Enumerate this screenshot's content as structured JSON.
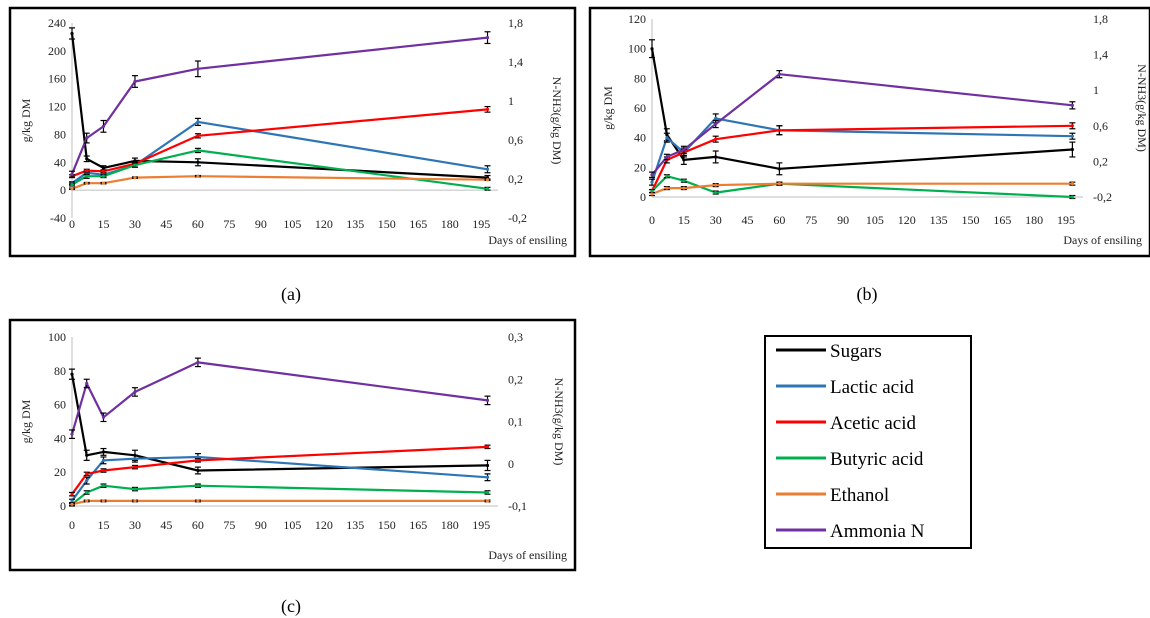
{
  "legend": [
    {
      "name": "Sugars",
      "color": "#000000"
    },
    {
      "name": "Lactic acid",
      "color": "#2e75b6"
    },
    {
      "name": "Acetic acid",
      "color": "#ff0000"
    },
    {
      "name": "Butyric acid",
      "color": "#00b050"
    },
    {
      "name": "Ethanol",
      "color": "#ed7d31"
    },
    {
      "name": "Ammonia N",
      "color": "#7030a0"
    }
  ],
  "chart_data": [
    {
      "type": "line",
      "label": "(a)",
      "xlabel": "Days of ensiling",
      "ylabel": "g/kg DM",
      "y2label": "N-NH3(g/kg DM)",
      "x_ticks": [
        "0",
        "15",
        "30",
        "45",
        "60",
        "75",
        "90",
        "105",
        "120",
        "135",
        "150",
        "165",
        "180",
        "195"
      ],
      "y_ticks": [
        "240",
        "200",
        "160",
        "120",
        "80",
        "40",
        "0",
        "-40"
      ],
      "y2_ticks": [
        "1,8",
        "1,4",
        "1",
        "0,6",
        "0,2",
        "-0,2"
      ],
      "ylim": [
        -40,
        240
      ],
      "y2lim": [
        -0.2,
        1.8
      ],
      "grid": false,
      "series": [
        {
          "name": "Sugars",
          "axis": "left",
          "x": [
            0,
            7,
            15,
            30,
            60,
            198
          ],
          "values": [
            225,
            45,
            32,
            42,
            40,
            18
          ],
          "err": [
            8,
            4,
            3,
            4,
            5,
            3
          ]
        },
        {
          "name": "Lactic acid",
          "axis": "left",
          "x": [
            0,
            7,
            15,
            30,
            60,
            198
          ],
          "values": [
            10,
            25,
            22,
            36,
            98,
            30
          ],
          "err": [
            2,
            3,
            3,
            3,
            5,
            5
          ]
        },
        {
          "name": "Acetic acid",
          "axis": "left",
          "x": [
            0,
            7,
            15,
            30,
            60,
            198
          ],
          "values": [
            20,
            28,
            27,
            38,
            78,
            116
          ],
          "err": [
            2,
            2,
            2,
            2,
            3,
            4
          ]
        },
        {
          "name": "Butyric acid",
          "axis": "left",
          "x": [
            0,
            7,
            15,
            30,
            60,
            198
          ],
          "values": [
            8,
            20,
            20,
            36,
            57,
            2
          ],
          "err": [
            2,
            3,
            2,
            3,
            3,
            2
          ]
        },
        {
          "name": "Ethanol",
          "axis": "left",
          "x": [
            0,
            7,
            15,
            30,
            60,
            198
          ],
          "values": [
            2,
            10,
            10,
            18,
            20,
            15
          ],
          "err": [
            1,
            1,
            1,
            1,
            1,
            1
          ]
        },
        {
          "name": "Ammonia N",
          "axis": "right",
          "x": [
            0,
            7,
            15,
            30,
            60,
            198
          ],
          "values": [
            0.25,
            0.62,
            0.74,
            1.2,
            1.33,
            1.65
          ],
          "err": [
            0.03,
            0.05,
            0.06,
            0.06,
            0.08,
            0.06
          ]
        }
      ]
    },
    {
      "type": "line",
      "label": "(b)",
      "xlabel": "Days of ensiling",
      "ylabel": "g/kg DM",
      "y2label": "N-NH3(g/kg DM)",
      "x_ticks": [
        "0",
        "15",
        "30",
        "45",
        "60",
        "75",
        "90",
        "105",
        "120",
        "135",
        "150",
        "165",
        "180",
        "195"
      ],
      "y_ticks": [
        "120",
        "100",
        "80",
        "60",
        "40",
        "20",
        "0"
      ],
      "y2_ticks": [
        "1,8",
        "1,4",
        "1",
        "0,6",
        "0,2",
        "-0,2"
      ],
      "ylim": [
        0,
        120
      ],
      "y2lim": [
        -0.2,
        1.8
      ],
      "grid": false,
      "series": [
        {
          "name": "Sugars",
          "axis": "left",
          "x": [
            0,
            7,
            15,
            30,
            60,
            198
          ],
          "values": [
            100,
            42,
            25,
            27,
            19,
            32
          ],
          "err": [
            6,
            4,
            3,
            4,
            4,
            5
          ]
        },
        {
          "name": "Lactic acid",
          "axis": "left",
          "x": [
            0,
            7,
            15,
            30,
            60,
            198
          ],
          "values": [
            10,
            40,
            30,
            53,
            45,
            41
          ],
          "err": [
            2,
            3,
            3,
            3,
            3,
            2
          ]
        },
        {
          "name": "Acetic acid",
          "axis": "left",
          "x": [
            0,
            7,
            15,
            30,
            60,
            198
          ],
          "values": [
            4,
            25,
            30,
            39,
            45,
            48
          ],
          "err": [
            1,
            2,
            2,
            2,
            3,
            2
          ]
        },
        {
          "name": "Butyric acid",
          "axis": "left",
          "x": [
            0,
            7,
            15,
            30,
            60,
            198
          ],
          "values": [
            4,
            14,
            11,
            3,
            9,
            0
          ],
          "err": [
            1,
            1,
            1,
            1,
            1,
            1
          ]
        },
        {
          "name": "Ethanol",
          "axis": "left",
          "x": [
            0,
            7,
            15,
            30,
            60,
            198
          ],
          "values": [
            2,
            6,
            6,
            8,
            9,
            9
          ],
          "err": [
            1,
            1,
            1,
            1,
            1,
            1
          ]
        },
        {
          "name": "Ammonia N",
          "axis": "right",
          "x": [
            0,
            7,
            15,
            30,
            60,
            198
          ],
          "values": [
            0.05,
            0.25,
            0.33,
            0.62,
            1.18,
            0.83
          ],
          "err": [
            0.03,
            0.03,
            0.04,
            0.04,
            0.04,
            0.04
          ]
        }
      ]
    },
    {
      "type": "line",
      "label": "(c)",
      "xlabel": "Days of ensiling",
      "ylabel": "g/kg DM",
      "y2label": "N-NH3(g/kg DM)",
      "x_ticks": [
        "0",
        "15",
        "30",
        "45",
        "60",
        "75",
        "90",
        "105",
        "120",
        "135",
        "150",
        "165",
        "180",
        "195"
      ],
      "y_ticks": [
        "100",
        "80",
        "60",
        "40",
        "20",
        "0"
      ],
      "y2_ticks": [
        "0,3",
        "0,2",
        "0,1",
        "0",
        "-0,1"
      ],
      "ylim": [
        0,
        100
      ],
      "y2lim": [
        -0.1,
        0.3
      ],
      "grid": false,
      "series": [
        {
          "name": "Sugars",
          "axis": "left",
          "x": [
            0,
            7,
            15,
            30,
            60,
            198
          ],
          "values": [
            78,
            30,
            32,
            30,
            21,
            24
          ],
          "err": [
            3,
            3,
            2,
            3,
            2,
            3
          ]
        },
        {
          "name": "Lactic acid",
          "axis": "left",
          "x": [
            0,
            7,
            15,
            30,
            60,
            198
          ],
          "values": [
            3,
            15,
            27,
            28,
            29,
            17
          ],
          "err": [
            1,
            2,
            2,
            2,
            2,
            2
          ]
        },
        {
          "name": "Acetic acid",
          "axis": "left",
          "x": [
            0,
            7,
            15,
            30,
            60,
            198
          ],
          "values": [
            7,
            19,
            21,
            23,
            27,
            35
          ],
          "err": [
            1,
            1,
            1,
            1,
            1,
            1
          ]
        },
        {
          "name": "Butyric acid",
          "axis": "left",
          "x": [
            0,
            7,
            15,
            30,
            60,
            198
          ],
          "values": [
            1,
            8,
            12,
            10,
            12,
            8
          ],
          "err": [
            1,
            1,
            1,
            1,
            1,
            1
          ]
        },
        {
          "name": "Ethanol",
          "axis": "left",
          "x": [
            0,
            7,
            15,
            30,
            60,
            198
          ],
          "values": [
            1,
            3,
            3,
            3,
            3,
            3
          ],
          "err": [
            0.5,
            0.5,
            0.5,
            0.5,
            0.5,
            0.5
          ]
        },
        {
          "name": "Ammonia N",
          "axis": "right",
          "x": [
            0,
            7,
            15,
            30,
            60,
            198
          ],
          "values": [
            0.07,
            0.19,
            0.11,
            0.17,
            0.24,
            0.15
          ],
          "err": [
            0.01,
            0.01,
            0.01,
            0.01,
            0.01,
            0.01
          ]
        }
      ]
    }
  ]
}
